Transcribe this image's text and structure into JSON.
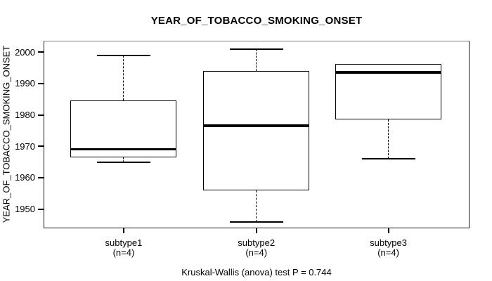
{
  "chart_data": {
    "type": "boxplot",
    "title": "YEAR_OF_TOBACCO_SMOKING_ONSET",
    "ylabel": "YEAR_OF_TOBACCO_SMOKING_ONSET",
    "xlabel": "",
    "y_ticks": [
      1950,
      1960,
      1970,
      1980,
      1990,
      2000
    ],
    "ylim": [
      1944,
      2003.6
    ],
    "grid": false,
    "legend": "none",
    "categories": [
      "subtype1",
      "subtype2",
      "subtype3"
    ],
    "group_sizes": [
      "(n=4)",
      "(n=4)",
      "(n=4)"
    ],
    "series": [
      {
        "name": "subtype1",
        "n": 4,
        "min": 1965,
        "q1": 1966.5,
        "median": 1969,
        "q3": 1984.5,
        "max": 1999,
        "outliers": []
      },
      {
        "name": "subtype2",
        "n": 4,
        "min": 1946,
        "q1": 1956,
        "median": 1976.5,
        "q3": 1994,
        "max": 2001,
        "outliers": []
      },
      {
        "name": "subtype3",
        "n": 4,
        "min": 1966,
        "q1": 1978.5,
        "median": 1993.5,
        "q3": 1996.3,
        "max": 1996.3,
        "outliers": []
      }
    ],
    "annotation": "Kruskal-Wallis (anova) test P = 0.744",
    "colors": {
      "line": "#000000",
      "box_fill": "#ffffff",
      "background": "#ffffff"
    }
  }
}
